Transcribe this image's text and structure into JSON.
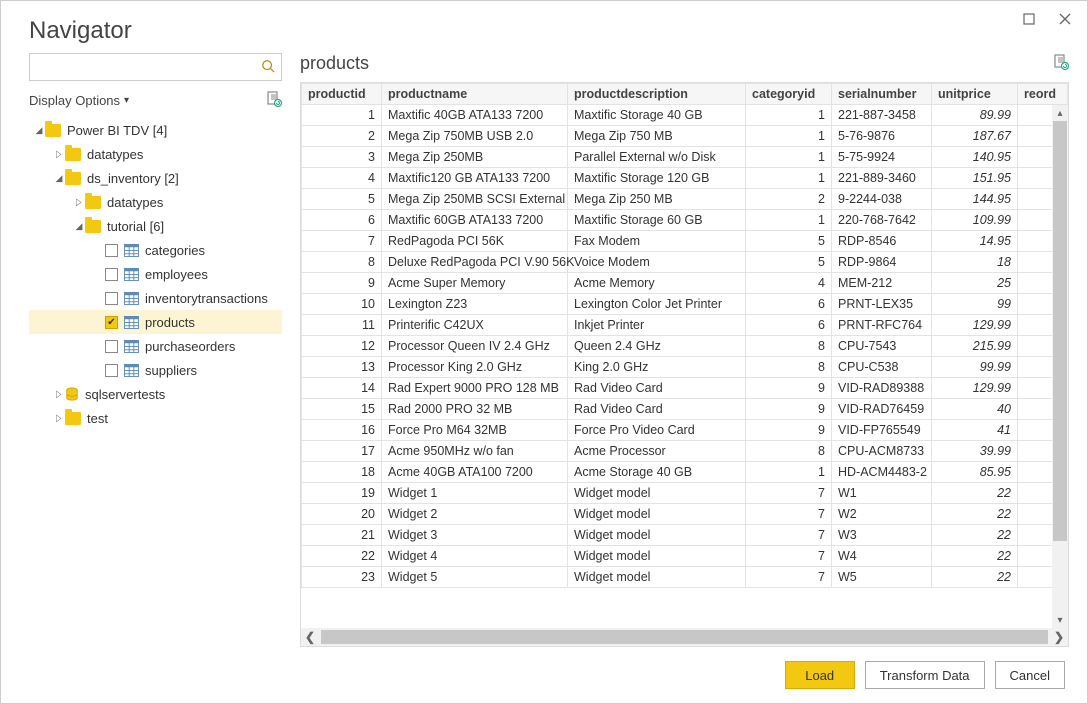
{
  "window": {
    "title": "Navigator"
  },
  "searchPlaceholder": "",
  "displayOptionsLabel": "Display Options",
  "tree": [
    {
      "id": "root",
      "level": 0,
      "twisty": "down",
      "icon": "folder",
      "label": "Power BI TDV [4]",
      "checkbox": false
    },
    {
      "id": "datatypes1",
      "level": 1,
      "twisty": "right",
      "icon": "folder",
      "label": "datatypes",
      "checkbox": false
    },
    {
      "id": "dsinv",
      "level": 1,
      "twisty": "down",
      "icon": "folder",
      "label": "ds_inventory [2]",
      "checkbox": false
    },
    {
      "id": "datatypes2",
      "level": 2,
      "twisty": "right",
      "icon": "folder",
      "label": "datatypes",
      "checkbox": false
    },
    {
      "id": "tutorial",
      "level": 2,
      "twisty": "down",
      "icon": "folder",
      "label": "tutorial [6]",
      "checkbox": false
    },
    {
      "id": "categories",
      "level": 3,
      "twisty": "none",
      "icon": "table",
      "label": "categories",
      "checkbox": true,
      "checked": false
    },
    {
      "id": "employees",
      "level": 3,
      "twisty": "none",
      "icon": "table",
      "label": "employees",
      "checkbox": true,
      "checked": false
    },
    {
      "id": "inventorytransactions",
      "level": 3,
      "twisty": "none",
      "icon": "table",
      "label": "inventorytransactions",
      "checkbox": true,
      "checked": false
    },
    {
      "id": "products",
      "level": 3,
      "twisty": "none",
      "icon": "table",
      "label": "products",
      "checkbox": true,
      "checked": true,
      "selected": true
    },
    {
      "id": "purchaseorders",
      "level": 3,
      "twisty": "none",
      "icon": "table",
      "label": "purchaseorders",
      "checkbox": true,
      "checked": false
    },
    {
      "id": "suppliers",
      "level": 3,
      "twisty": "none",
      "icon": "table",
      "label": "suppliers",
      "checkbox": true,
      "checked": false
    },
    {
      "id": "sqlservertests",
      "level": 1,
      "twisty": "right",
      "icon": "db",
      "label": "sqlservertests",
      "checkbox": false
    },
    {
      "id": "test",
      "level": 1,
      "twisty": "right",
      "icon": "folder",
      "label": "test",
      "checkbox": false
    }
  ],
  "preview": {
    "title": "products",
    "columns": [
      {
        "key": "productid",
        "label": "productid",
        "width": 80,
        "align": "num"
      },
      {
        "key": "productname",
        "label": "productname",
        "width": 186,
        "align": "left"
      },
      {
        "key": "productdescription",
        "label": "productdescription",
        "width": 178,
        "align": "left"
      },
      {
        "key": "categoryid",
        "label": "categoryid",
        "width": 86,
        "align": "num"
      },
      {
        "key": "serialnumber",
        "label": "serialnumber",
        "width": 100,
        "align": "left"
      },
      {
        "key": "unitprice",
        "label": "unitprice",
        "width": 86,
        "align": "price"
      },
      {
        "key": "reorderlevel",
        "label": "reord",
        "width": 50,
        "align": "left"
      }
    ],
    "rows": [
      {
        "productid": "1",
        "productname": "Maxtific 40GB ATA133 7200",
        "productdescription": "Maxtific Storage 40 GB",
        "categoryid": "1",
        "serialnumber": "221-887-3458",
        "unitprice": "89.99"
      },
      {
        "productid": "2",
        "productname": "Mega Zip 750MB USB 2.0",
        "productdescription": "Mega Zip 750 MB",
        "categoryid": "1",
        "serialnumber": "5-76-9876",
        "unitprice": "187.67"
      },
      {
        "productid": "3",
        "productname": "Mega Zip 250MB",
        "productdescription": "Parallel External w/o Disk",
        "categoryid": "1",
        "serialnumber": "5-75-9924",
        "unitprice": "140.95"
      },
      {
        "productid": "4",
        "productname": "Maxtific120 GB ATA133 7200",
        "productdescription": "Maxtific Storage 120 GB",
        "categoryid": "1",
        "serialnumber": "221-889-3460",
        "unitprice": "151.95"
      },
      {
        "productid": "5",
        "productname": "Mega Zip 250MB SCSI External",
        "productdescription": "Mega Zip 250 MB",
        "categoryid": "2",
        "serialnumber": "9-2244-038",
        "unitprice": "144.95"
      },
      {
        "productid": "6",
        "productname": "Maxtific 60GB ATA133 7200",
        "productdescription": "Maxtific Storage 60 GB",
        "categoryid": "1",
        "serialnumber": "220-768-7642",
        "unitprice": "109.99"
      },
      {
        "productid": "7",
        "productname": "RedPagoda PCI 56K",
        "productdescription": "Fax Modem",
        "categoryid": "5",
        "serialnumber": "RDP-8546",
        "unitprice": "14.95"
      },
      {
        "productid": "8",
        "productname": "Deluxe RedPagoda PCI V.90 56K",
        "productdescription": "Voice Modem",
        "categoryid": "5",
        "serialnumber": "RDP-9864",
        "unitprice": "18"
      },
      {
        "productid": "9",
        "productname": "Acme Super Memory",
        "productdescription": "Acme Memory",
        "categoryid": "4",
        "serialnumber": "MEM-212",
        "unitprice": "25"
      },
      {
        "productid": "10",
        "productname": "Lexington Z23",
        "productdescription": "Lexington Color Jet Printer",
        "categoryid": "6",
        "serialnumber": "PRNT-LEX35",
        "unitprice": "99"
      },
      {
        "productid": "11",
        "productname": "Printerific C42UX",
        "productdescription": "Inkjet Printer",
        "categoryid": "6",
        "serialnumber": "PRNT-RFC764",
        "unitprice": "129.99"
      },
      {
        "productid": "12",
        "productname": "Processor Queen IV 2.4 GHz",
        "productdescription": "Queen 2.4 GHz",
        "categoryid": "8",
        "serialnumber": "CPU-7543",
        "unitprice": "215.99"
      },
      {
        "productid": "13",
        "productname": "Processor King 2.0 GHz",
        "productdescription": "King 2.0 GHz",
        "categoryid": "8",
        "serialnumber": "CPU-C538",
        "unitprice": "99.99"
      },
      {
        "productid": "14",
        "productname": "Rad Expert 9000 PRO 128 MB",
        "productdescription": "Rad Video Card",
        "categoryid": "9",
        "serialnumber": "VID-RAD89388",
        "unitprice": "129.99"
      },
      {
        "productid": "15",
        "productname": "Rad 2000 PRO 32 MB",
        "productdescription": "Rad Video Card",
        "categoryid": "9",
        "serialnumber": "VID-RAD76459",
        "unitprice": "40"
      },
      {
        "productid": "16",
        "productname": "Force Pro M64 32MB",
        "productdescription": "Force Pro Video Card",
        "categoryid": "9",
        "serialnumber": "VID-FP765549",
        "unitprice": "41"
      },
      {
        "productid": "17",
        "productname": "Acme 950MHz w/o fan",
        "productdescription": "Acme Processor",
        "categoryid": "8",
        "serialnumber": "CPU-ACM8733",
        "unitprice": "39.99"
      },
      {
        "productid": "18",
        "productname": "Acme 40GB ATA100 7200",
        "productdescription": "Acme Storage 40 GB",
        "categoryid": "1",
        "serialnumber": "HD-ACM4483-2",
        "unitprice": "85.95"
      },
      {
        "productid": "19",
        "productname": "Widget 1",
        "productdescription": "Widget model",
        "categoryid": "7",
        "serialnumber": "W1",
        "unitprice": "22"
      },
      {
        "productid": "20",
        "productname": "Widget 2",
        "productdescription": "Widget model",
        "categoryid": "7",
        "serialnumber": "W2",
        "unitprice": "22"
      },
      {
        "productid": "21",
        "productname": "Widget 3",
        "productdescription": "Widget model",
        "categoryid": "7",
        "serialnumber": "W3",
        "unitprice": "22"
      },
      {
        "productid": "22",
        "productname": "Widget 4",
        "productdescription": "Widget model",
        "categoryid": "7",
        "serialnumber": "W4",
        "unitprice": "22"
      },
      {
        "productid": "23",
        "productname": "Widget 5",
        "productdescription": "Widget model",
        "categoryid": "7",
        "serialnumber": "W5",
        "unitprice": "22"
      }
    ]
  },
  "buttons": {
    "load": "Load",
    "transform": "Transform Data",
    "cancel": "Cancel"
  },
  "colors": {
    "accent": "#f2c811",
    "border": "#e3e3e3"
  }
}
